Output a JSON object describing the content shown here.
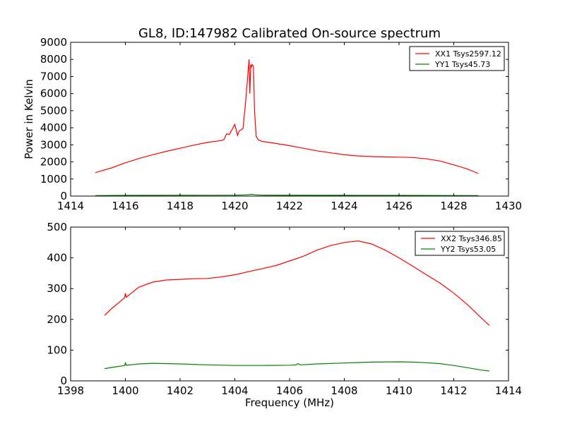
{
  "chart_data": [
    {
      "type": "line",
      "title": "GL8, ID:147982 Calibrated On-source spectrum",
      "xlabel": "",
      "ylabel": "Power in Kelvin",
      "xlim": [
        1414,
        1430
      ],
      "ylim": [
        0,
        9000
      ],
      "xticks": [
        "1414",
        "1416",
        "1418",
        "1420",
        "1422",
        "1424",
        "1426",
        "1428",
        "1430"
      ],
      "yticks": [
        "0",
        "1000",
        "2000",
        "3000",
        "4000",
        "5000",
        "6000",
        "7000",
        "8000",
        "9000"
      ],
      "legend_position": "top-right",
      "series": [
        {
          "name": "XX1 Tsys2597.12",
          "color": "#ff0000",
          "x": [
            1414.9,
            1415.5,
            1416,
            1416.5,
            1417,
            1417.5,
            1418,
            1418.5,
            1419,
            1419.5,
            1419.6,
            1419.7,
            1419.8,
            1420.0,
            1420.1,
            1420.15,
            1420.2,
            1420.3,
            1420.4,
            1420.5,
            1420.52,
            1420.55,
            1420.58,
            1420.6,
            1420.63,
            1420.68,
            1420.72,
            1420.78,
            1420.85,
            1421,
            1421.5,
            1422,
            1422.5,
            1423,
            1423.5,
            1424,
            1424.5,
            1425,
            1425.5,
            1426,
            1426.5,
            1427,
            1427.5,
            1428,
            1428.5,
            1428.9
          ],
          "y": [
            1370,
            1650,
            1950,
            2200,
            2420,
            2620,
            2800,
            2980,
            3140,
            3250,
            3300,
            3650,
            3600,
            4200,
            3550,
            3800,
            3850,
            3950,
            5600,
            7600,
            8000,
            6000,
            7700,
            7500,
            7700,
            7600,
            5000,
            3500,
            3300,
            3200,
            3080,
            2950,
            2800,
            2650,
            2530,
            2420,
            2350,
            2310,
            2290,
            2280,
            2260,
            2180,
            2050,
            1830,
            1580,
            1320
          ]
        },
        {
          "name": "YY1 Tsys45.73",
          "color": "#008000",
          "x": [
            1414.9,
            1416,
            1418,
            1420,
            1420.4,
            1420.6,
            1420.8,
            1421,
            1424,
            1426,
            1428,
            1428.9
          ],
          "y": [
            25,
            40,
            48,
            52,
            70,
            105,
            70,
            52,
            45,
            40,
            35,
            28
          ]
        }
      ]
    },
    {
      "type": "line",
      "title": "",
      "xlabel": "Frequency (MHz)",
      "ylabel": "",
      "xlim": [
        1398,
        1414
      ],
      "ylim": [
        0,
        500
      ],
      "xticks": [
        "1398",
        "1400",
        "1402",
        "1404",
        "1406",
        "1408",
        "1410",
        "1412",
        "1414"
      ],
      "yticks": [
        "0",
        "100",
        "200",
        "300",
        "400",
        "500"
      ],
      "legend_position": "top-right",
      "series": [
        {
          "name": "XX2 Tsys346.85",
          "color": "#ff0000",
          "x": [
            1399.24,
            1399.5,
            1399.97,
            1400,
            1400.03,
            1400.5,
            1401,
            1401.5,
            1402,
            1402.5,
            1403,
            1403.5,
            1404,
            1404.5,
            1405,
            1405.5,
            1406,
            1406.5,
            1407,
            1407.5,
            1408,
            1408.5,
            1409,
            1409.5,
            1410,
            1410.5,
            1411,
            1411.5,
            1412,
            1412.5,
            1413,
            1413.3
          ],
          "y": [
            213,
            235,
            270,
            285,
            272,
            305,
            321,
            328,
            330,
            332,
            333,
            338,
            345,
            355,
            365,
            375,
            390,
            405,
            425,
            440,
            450,
            455,
            445,
            425,
            400,
            373,
            345,
            318,
            285,
            248,
            205,
            180
          ]
        },
        {
          "name": "YY2 Tsys53.05",
          "color": "#008000",
          "x": [
            1399.24,
            1399.6,
            1399.98,
            1400,
            1400.03,
            1400.5,
            1401,
            1402,
            1403,
            1404,
            1405,
            1406,
            1406.25,
            1406.3,
            1406.4,
            1407,
            1408,
            1409,
            1410,
            1410.5,
            1411,
            1411.5,
            1412,
            1412.5,
            1413,
            1413.3
          ],
          "y": [
            40,
            45,
            50,
            60,
            51,
            55,
            57,
            55,
            52,
            50,
            50,
            51,
            52,
            56,
            52,
            55,
            58,
            61,
            62,
            61,
            59,
            56,
            50,
            43,
            35,
            32
          ]
        }
      ]
    }
  ]
}
